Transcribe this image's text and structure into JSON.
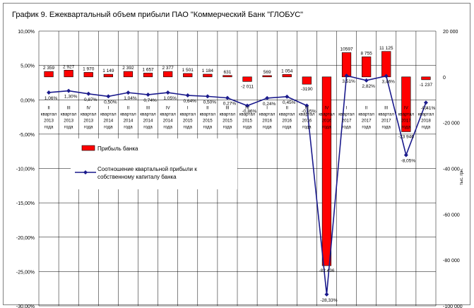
{
  "chart_data": {
    "type": "bar",
    "title": "График 9. Ежеквартальный объем прибыли ПАО \"Коммерческий Банк \"ГЛОБУС\"",
    "categories": [
      [
        "II",
        "квартал",
        "2013",
        "года"
      ],
      [
        "III",
        "квартал",
        "2013",
        "года"
      ],
      [
        "IV",
        "квартал",
        "2013",
        "года"
      ],
      [
        "I",
        "квартал",
        "2014",
        "года"
      ],
      [
        "II",
        "квартал",
        "2014",
        "года"
      ],
      [
        "III",
        "квартал",
        "2014",
        "года"
      ],
      [
        "IV",
        "квартал",
        "2014",
        "года"
      ],
      [
        "I",
        "квартал",
        "2015",
        "года"
      ],
      [
        "II",
        "квартал",
        "2015",
        "года"
      ],
      [
        "III",
        "квартал",
        "2015",
        "года"
      ],
      [
        "IV",
        "квартал",
        "2015",
        "года"
      ],
      [
        "I",
        "квартал",
        "2016",
        "года"
      ],
      [
        "II",
        "квартал",
        "2016",
        "года"
      ],
      [
        "III",
        "квартал",
        "2016",
        "года"
      ],
      [
        "IV",
        "квартал",
        "2016",
        "года"
      ],
      [
        "I",
        "квартал",
        "2017",
        "года"
      ],
      [
        "II",
        "квартал",
        "2017",
        "года"
      ],
      [
        "III",
        "квартал",
        "2017",
        "года"
      ],
      [
        "IV",
        "квартал",
        "2017",
        "года"
      ],
      [
        "I",
        "квартал",
        "2018",
        "года"
      ]
    ],
    "series": [
      {
        "name": "Прибыль банка",
        "axis": "right",
        "color": "#ff0000",
        "values": [
          2359,
          2927,
          1970,
          1149,
          2392,
          1657,
          2377,
          1501,
          1184,
          631,
          -2011,
          569,
          1054,
          -3190,
          -82436,
          10597,
          8755,
          11125,
          -23946,
          -1237
        ],
        "labels": [
          "2 359",
          "2 927",
          "1 970",
          "1 149",
          "2 392",
          "1 657",
          "2 377",
          "1 501",
          "1 184",
          "631",
          "-2 011",
          "569",
          "1 054",
          "-3190",
          "-82 436",
          "10597",
          "8 755",
          "11 125",
          "-23 946",
          "-1 237"
        ]
      },
      {
        "name": "Соотношение квартальной прибыли к собственному капиталу банка",
        "axis": "left",
        "color": "#1a1a8c",
        "values": [
          1.06,
          1.3,
          0.87,
          0.5,
          1.04,
          0.74,
          1.05,
          0.64,
          0.5,
          0.27,
          -0.86,
          0.24,
          0.45,
          -0.85,
          -28.33,
          3.51,
          2.82,
          3.46,
          -8.05,
          -0.41
        ],
        "labels": [
          "1,06%",
          "1,30%",
          "0,87%",
          "0,50%",
          "1,04%",
          "0,74%",
          "1,05%",
          "0,64%",
          "0,50%",
          "0,27%",
          "-0,86%",
          "0,24%",
          "0,45%",
          "-0,85%",
          "-28,33%",
          "3,51%",
          "2,82%",
          "3,46%",
          "-8,05%",
          "-0,41%"
        ]
      }
    ],
    "left_axis": {
      "ylim": [
        -30,
        10
      ],
      "ticks": [
        10,
        5,
        0,
        -5,
        -10,
        -15,
        -20,
        -25,
        -30
      ],
      "tick_labels": [
        "10,00%",
        "5,00%",
        "0,00%",
        "-5,00%",
        "-10,00%",
        "-15,00%",
        "-20,00%",
        "-25,00%",
        "-30,00%"
      ]
    },
    "right_axis": {
      "ylim": [
        -100000,
        20000
      ],
      "ticks": [
        20000,
        0,
        -20000,
        -40000,
        -60000,
        -80000,
        -100000
      ],
      "tick_labels": [
        "20 000",
        "0",
        "-20 000",
        "-40 000",
        "-60 000",
        "-80 000",
        "-100 000"
      ],
      "label": "тыс. грн."
    },
    "legend": {
      "placement": "center-left",
      "bar_label": "Прибыль  банка",
      "line_label_1": "Соотношение квартальной прибыли к",
      "line_label_2": "собственному капиталу банка"
    },
    "grid": true
  }
}
